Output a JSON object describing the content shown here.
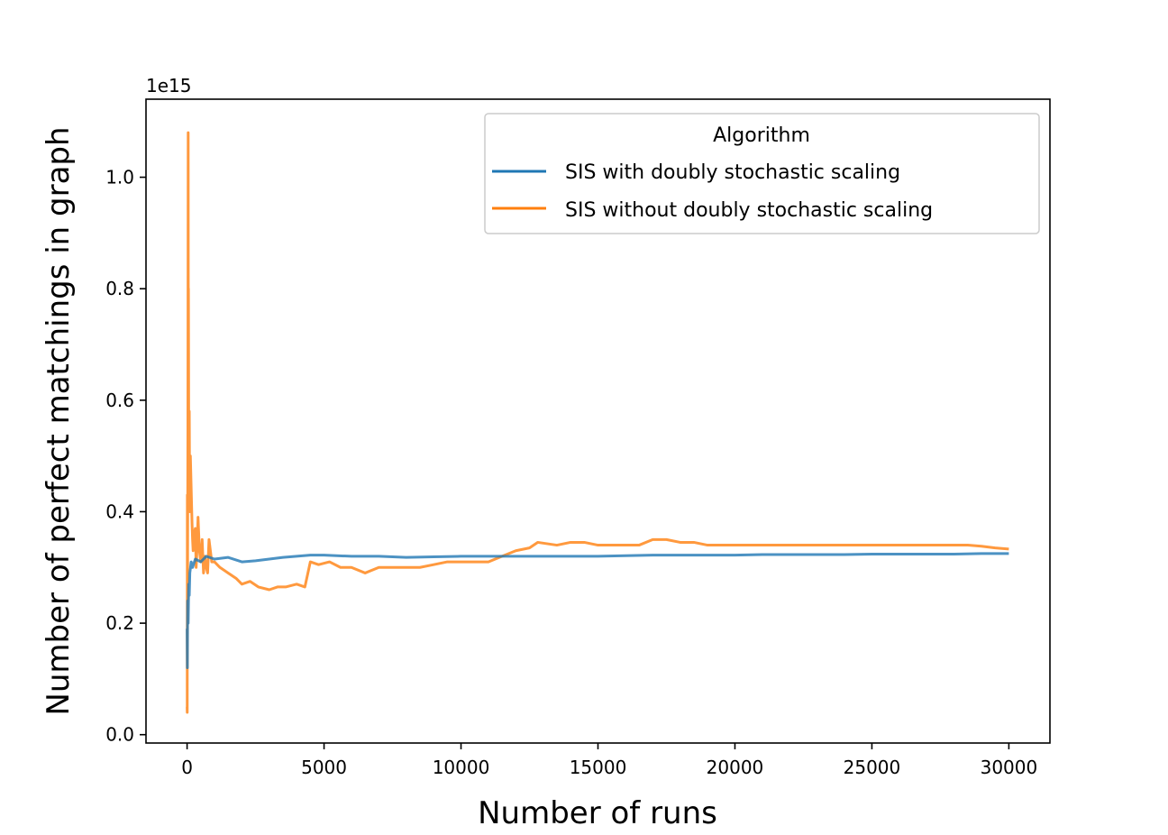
{
  "chart_data": {
    "type": "line",
    "xlabel": "Number of runs",
    "ylabel": "Number of perfect matchings in graph",
    "y_offset_label": "1e15",
    "xlim": [
      -1500,
      31500
    ],
    "ylim": [
      -0.015,
      1.14
    ],
    "x_ticks": [
      0,
      5000,
      10000,
      15000,
      20000,
      25000,
      30000
    ],
    "y_ticks": [
      0.0,
      0.2,
      0.4,
      0.6,
      0.8,
      1.0
    ],
    "grid": false,
    "legend": {
      "title": "Algorithm",
      "placement": "top-right"
    },
    "series": [
      {
        "name": "SIS with doubly stochastic scaling",
        "color": "#1f77b4",
        "points": [
          [
            0,
            0.19
          ],
          [
            10,
            0.12
          ],
          [
            20,
            0.24
          ],
          [
            40,
            0.2
          ],
          [
            60,
            0.27
          ],
          [
            80,
            0.25
          ],
          [
            100,
            0.29
          ],
          [
            150,
            0.31
          ],
          [
            200,
            0.3
          ],
          [
            300,
            0.315
          ],
          [
            500,
            0.31
          ],
          [
            700,
            0.32
          ],
          [
            1000,
            0.315
          ],
          [
            1500,
            0.318
          ],
          [
            2000,
            0.31
          ],
          [
            2500,
            0.312
          ],
          [
            3000,
            0.315
          ],
          [
            3500,
            0.318
          ],
          [
            4000,
            0.32
          ],
          [
            4500,
            0.322
          ],
          [
            5000,
            0.322
          ],
          [
            6000,
            0.32
          ],
          [
            7000,
            0.32
          ],
          [
            8000,
            0.318
          ],
          [
            9000,
            0.319
          ],
          [
            10000,
            0.32
          ],
          [
            11000,
            0.32
          ],
          [
            12000,
            0.32
          ],
          [
            13000,
            0.32
          ],
          [
            14000,
            0.32
          ],
          [
            15000,
            0.32
          ],
          [
            16000,
            0.321
          ],
          [
            17000,
            0.322
          ],
          [
            18000,
            0.322
          ],
          [
            19000,
            0.322
          ],
          [
            20000,
            0.322
          ],
          [
            21000,
            0.323
          ],
          [
            22000,
            0.323
          ],
          [
            23000,
            0.323
          ],
          [
            24000,
            0.323
          ],
          [
            25000,
            0.324
          ],
          [
            26000,
            0.324
          ],
          [
            27000,
            0.324
          ],
          [
            28000,
            0.324
          ],
          [
            29000,
            0.325
          ],
          [
            30000,
            0.325
          ]
        ]
      },
      {
        "name": "SIS without doubly stochastic scaling",
        "color": "#ff7f0e",
        "points": [
          [
            0,
            0.05
          ],
          [
            5,
            0.04
          ],
          [
            10,
            0.43
          ],
          [
            15,
            0.2
          ],
          [
            20,
            0.35
          ],
          [
            30,
            0.55
          ],
          [
            40,
            1.08
          ],
          [
            45,
            0.7
          ],
          [
            50,
            0.8
          ],
          [
            60,
            0.55
          ],
          [
            70,
            0.42
          ],
          [
            80,
            0.58
          ],
          [
            90,
            0.45
          ],
          [
            100,
            0.4
          ],
          [
            120,
            0.5
          ],
          [
            150,
            0.44
          ],
          [
            180,
            0.38
          ],
          [
            200,
            0.35
          ],
          [
            220,
            0.33
          ],
          [
            250,
            0.36
          ],
          [
            300,
            0.37
          ],
          [
            330,
            0.3
          ],
          [
            360,
            0.33
          ],
          [
            400,
            0.39
          ],
          [
            450,
            0.33
          ],
          [
            500,
            0.31
          ],
          [
            550,
            0.35
          ],
          [
            600,
            0.29
          ],
          [
            650,
            0.32
          ],
          [
            700,
            0.3
          ],
          [
            750,
            0.29
          ],
          [
            800,
            0.35
          ],
          [
            850,
            0.33
          ],
          [
            900,
            0.31
          ],
          [
            1000,
            0.31
          ],
          [
            1200,
            0.3
          ],
          [
            1500,
            0.29
          ],
          [
            1800,
            0.28
          ],
          [
            2000,
            0.27
          ],
          [
            2300,
            0.275
          ],
          [
            2600,
            0.265
          ],
          [
            3000,
            0.26
          ],
          [
            3300,
            0.265
          ],
          [
            3600,
            0.265
          ],
          [
            4000,
            0.27
          ],
          [
            4300,
            0.265
          ],
          [
            4500,
            0.31
          ],
          [
            4800,
            0.305
          ],
          [
            5200,
            0.31
          ],
          [
            5600,
            0.3
          ],
          [
            6000,
            0.3
          ],
          [
            6500,
            0.29
          ],
          [
            7000,
            0.3
          ],
          [
            7500,
            0.3
          ],
          [
            8000,
            0.3
          ],
          [
            8500,
            0.3
          ],
          [
            9000,
            0.305
          ],
          [
            9500,
            0.31
          ],
          [
            10000,
            0.31
          ],
          [
            10500,
            0.31
          ],
          [
            11000,
            0.31
          ],
          [
            11500,
            0.32
          ],
          [
            12000,
            0.33
          ],
          [
            12500,
            0.335
          ],
          [
            12800,
            0.345
          ],
          [
            13500,
            0.34
          ],
          [
            14000,
            0.345
          ],
          [
            14500,
            0.345
          ],
          [
            15000,
            0.34
          ],
          [
            15500,
            0.34
          ],
          [
            16000,
            0.34
          ],
          [
            16500,
            0.34
          ],
          [
            17000,
            0.35
          ],
          [
            17500,
            0.35
          ],
          [
            18000,
            0.345
          ],
          [
            18500,
            0.345
          ],
          [
            19000,
            0.34
          ],
          [
            19500,
            0.34
          ],
          [
            20000,
            0.34
          ],
          [
            21000,
            0.34
          ],
          [
            22000,
            0.34
          ],
          [
            23000,
            0.34
          ],
          [
            24000,
            0.34
          ],
          [
            25000,
            0.34
          ],
          [
            26000,
            0.34
          ],
          [
            27000,
            0.34
          ],
          [
            27500,
            0.34
          ],
          [
            28000,
            0.34
          ],
          [
            28500,
            0.34
          ],
          [
            29000,
            0.338
          ],
          [
            29500,
            0.335
          ],
          [
            30000,
            0.333
          ]
        ]
      }
    ]
  }
}
